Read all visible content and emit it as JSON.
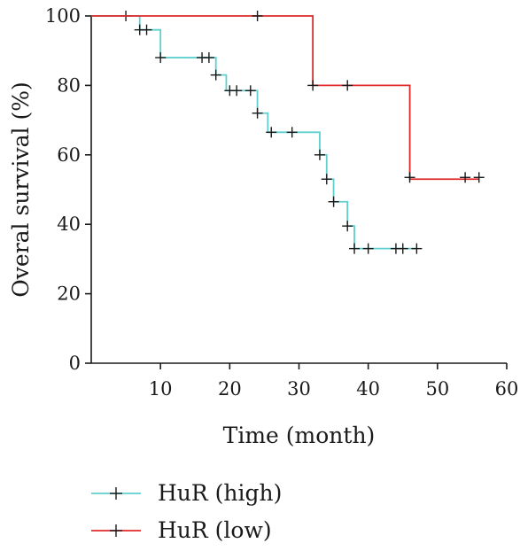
{
  "chart_data": {
    "type": "line",
    "title": "",
    "xlabel": "Time (month)",
    "ylabel": "Overal survival (%)",
    "xlim": [
      0,
      60
    ],
    "ylim": [
      0,
      100
    ],
    "xticks": [
      10,
      20,
      30,
      40,
      50,
      60
    ],
    "yticks": [
      0,
      20,
      40,
      60,
      80,
      100
    ],
    "grid": false,
    "legend_position": "bottom-left",
    "step": true,
    "series": [
      {
        "name": "HuR (high)",
        "color": "#5fcfcf",
        "steps": [
          [
            0,
            100
          ],
          [
            7,
            96
          ],
          [
            10,
            88
          ],
          [
            18,
            83
          ],
          [
            19.5,
            78.5
          ],
          [
            24,
            72
          ],
          [
            25.5,
            66.5
          ],
          [
            33,
            60
          ],
          [
            34,
            53
          ],
          [
            35,
            46.5
          ],
          [
            37,
            39.5
          ],
          [
            38,
            33
          ]
        ],
        "end_x": 47,
        "censored": [
          [
            5,
            100
          ],
          [
            7,
            96
          ],
          [
            8,
            96
          ],
          [
            10,
            88
          ],
          [
            16,
            88
          ],
          [
            17,
            88
          ],
          [
            18,
            83
          ],
          [
            20,
            78.5
          ],
          [
            21,
            78.5
          ],
          [
            23,
            78.5
          ],
          [
            24,
            72
          ],
          [
            26,
            66.5
          ],
          [
            29,
            66.5
          ],
          [
            33,
            60
          ],
          [
            34,
            53
          ],
          [
            35,
            46.5
          ],
          [
            37,
            39.5
          ],
          [
            38,
            33
          ],
          [
            40,
            33
          ],
          [
            44,
            33
          ],
          [
            45,
            33
          ],
          [
            47,
            33
          ]
        ]
      },
      {
        "name": "HuR (low)",
        "color": "#e02a2a",
        "steps": [
          [
            0,
            100
          ],
          [
            32,
            80
          ],
          [
            46,
            53
          ]
        ],
        "end_x": 56,
        "censored": [
          [
            24,
            100
          ],
          [
            32,
            80
          ],
          [
            37,
            80
          ],
          [
            46,
            53.5
          ],
          [
            54,
            53.5
          ],
          [
            56,
            53.5
          ]
        ]
      }
    ]
  }
}
